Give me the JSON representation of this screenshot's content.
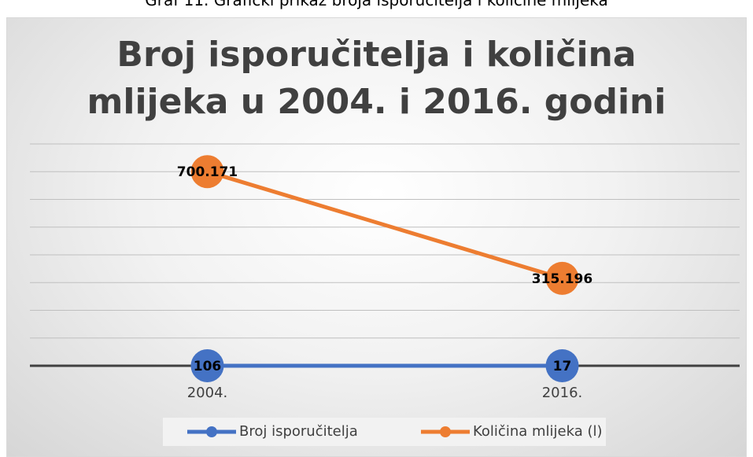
{
  "caption": "Graf 11. Grafički prikaz broja isporučitelja i količine mlijeka",
  "chart_data": {
    "type": "line",
    "title": "Broj isporučitelja i količina mlijeka u 2004. i 2016. godini",
    "categories": [
      "2004.",
      "2016."
    ],
    "series": [
      {
        "name": "Broj isporučitelja",
        "color": "#4472c4",
        "values": [
          106,
          17
        ]
      },
      {
        "name": "Količina mlijeka (l)",
        "color": "#ed7d31",
        "values": [
          700171,
          315196
        ],
        "value_labels": [
          "700.171",
          "315.196"
        ]
      }
    ],
    "ylim": [
      0,
      800000
    ],
    "yticks": [
      0,
      100000,
      200000,
      300000,
      400000,
      500000,
      600000,
      700000,
      800000
    ],
    "grid": true,
    "legend": "bottom"
  }
}
